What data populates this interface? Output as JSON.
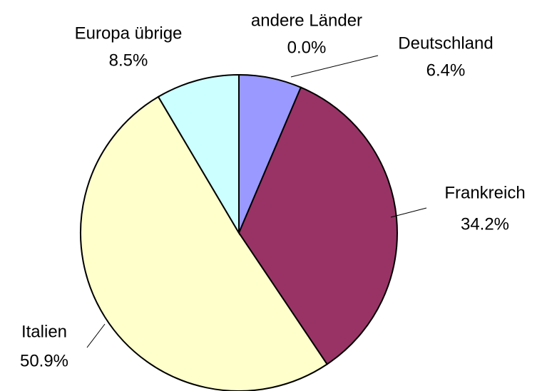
{
  "chart_data": {
    "type": "pie",
    "categories": [
      "Deutschland",
      "Frankreich",
      "Italien",
      "Europa übrige",
      "andere Länder"
    ],
    "values": [
      6.4,
      34.2,
      50.9,
      8.5,
      0.0
    ],
    "value_labels": [
      "6.4%",
      "34.2%",
      "50.9%",
      "8.5%",
      "0.0%"
    ],
    "colors": [
      "#9999ff",
      "#993366",
      "#ffffcc",
      "#ccffff",
      "#660066"
    ]
  }
}
